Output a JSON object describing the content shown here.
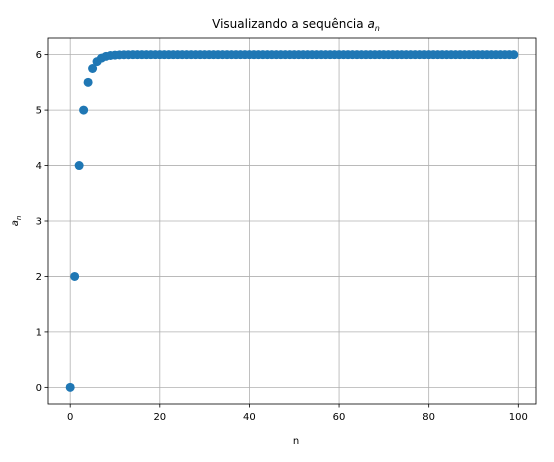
{
  "chart_data": {
    "type": "scatter",
    "title_main": "Visualizando a sequência ",
    "title_symbol": "a",
    "title_subscript": "n",
    "xlabel": "n",
    "ylabel_symbol": "a",
    "ylabel_subscript": "n",
    "xlim": [
      -4.95,
      103.95
    ],
    "ylim": [
      -0.3,
      6.3
    ],
    "x_ticks": [
      0,
      20,
      40,
      60,
      80,
      100
    ],
    "x_tick_labels": [
      "0",
      "20",
      "40",
      "60",
      "80",
      "100"
    ],
    "y_ticks": [
      0,
      1,
      2,
      3,
      4,
      5,
      6
    ],
    "y_tick_labels": [
      "0",
      "1",
      "2",
      "3",
      "4",
      "5",
      "6"
    ],
    "grid": true,
    "color": "#1f77b4",
    "x": [
      0,
      1,
      2,
      3,
      4,
      5,
      6,
      7,
      8,
      9,
      10,
      11,
      12,
      13,
      14,
      15,
      16,
      17,
      18,
      19,
      20,
      21,
      22,
      23,
      24,
      25,
      26,
      27,
      28,
      29,
      30,
      31,
      32,
      33,
      34,
      35,
      36,
      37,
      38,
      39,
      40,
      41,
      42,
      43,
      44,
      45,
      46,
      47,
      48,
      49,
      50,
      51,
      52,
      53,
      54,
      55,
      56,
      57,
      58,
      59,
      60,
      61,
      62,
      63,
      64,
      65,
      66,
      67,
      68,
      69,
      70,
      71,
      72,
      73,
      74,
      75,
      76,
      77,
      78,
      79,
      80,
      81,
      82,
      83,
      84,
      85,
      86,
      87,
      88,
      89,
      90,
      91,
      92,
      93,
      94,
      95,
      96,
      97,
      98,
      99
    ],
    "y": [
      0,
      2,
      4,
      5,
      5.5,
      5.75,
      5.875,
      5.9375,
      5.96875,
      5.984375,
      5.9921875,
      5.99609375,
      5.998046875,
      5.9990234375,
      5.99951171875,
      5.999755859375,
      5.9998779296875,
      5.99993896484375,
      5.999969482421875,
      5.9999847412109375,
      6,
      6,
      6,
      6,
      6,
      6,
      6,
      6,
      6,
      6,
      6,
      6,
      6,
      6,
      6,
      6,
      6,
      6,
      6,
      6,
      6,
      6,
      6,
      6,
      6,
      6,
      6,
      6,
      6,
      6,
      6,
      6,
      6,
      6,
      6,
      6,
      6,
      6,
      6,
      6,
      6,
      6,
      6,
      6,
      6,
      6,
      6,
      6,
      6,
      6,
      6,
      6,
      6,
      6,
      6,
      6,
      6,
      6,
      6,
      6,
      6,
      6,
      6,
      6,
      6,
      6,
      6,
      6,
      6,
      6,
      6,
      6,
      6,
      6,
      6,
      6,
      6,
      6,
      6,
      6
    ]
  }
}
